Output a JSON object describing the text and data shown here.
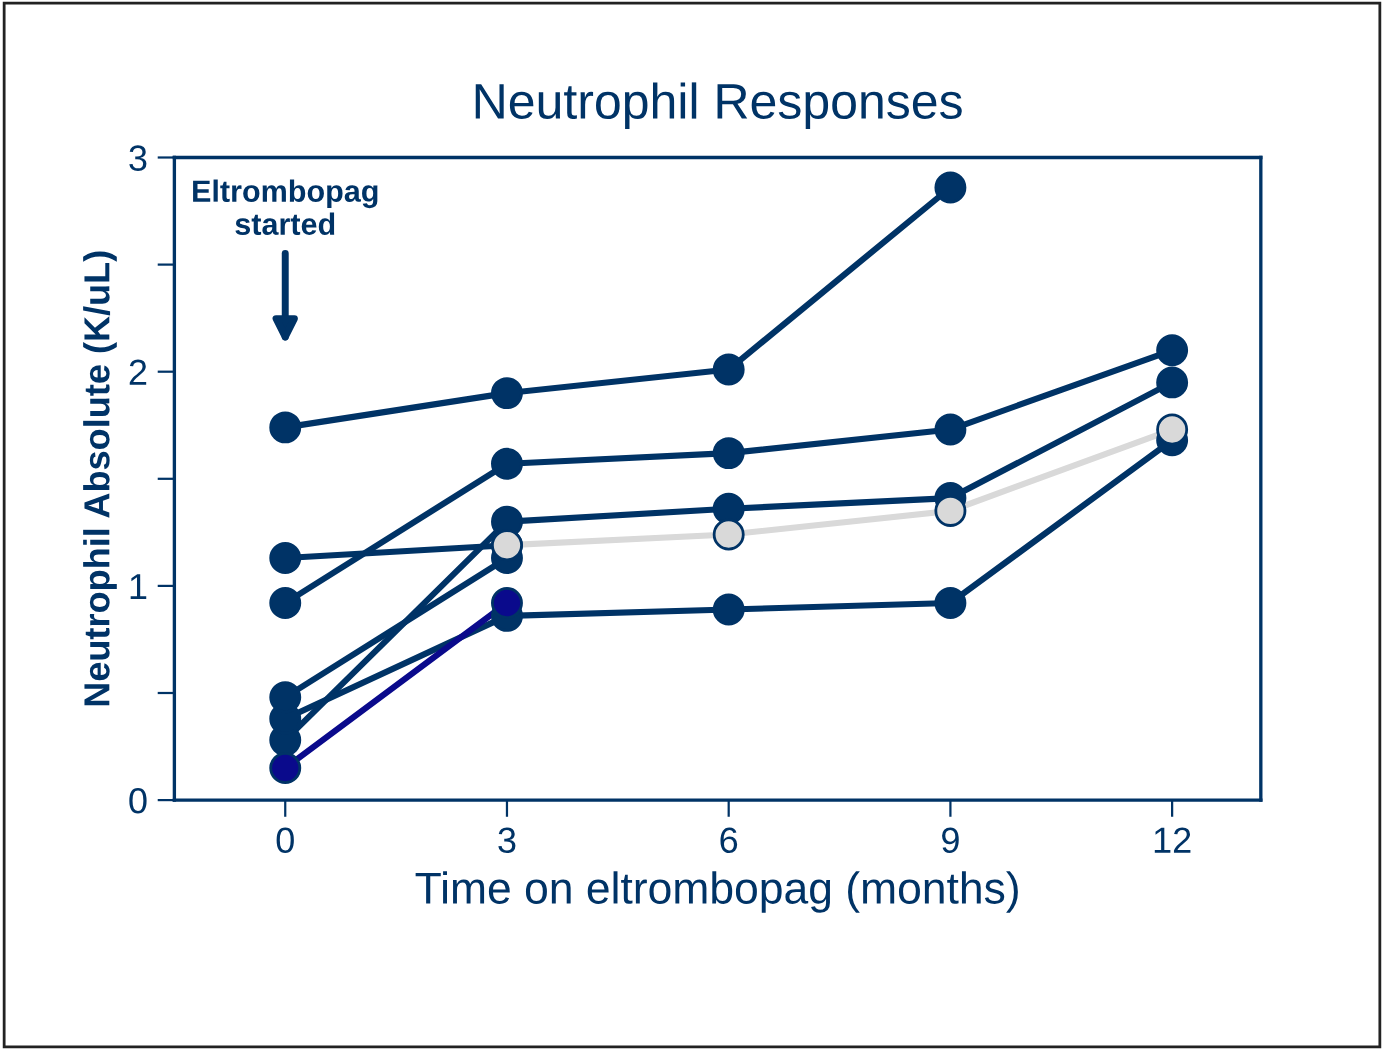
{
  "chart_data": {
    "type": "line",
    "title": "Neutrophil Responses",
    "xlabel": "Time on eltrombopag (months)",
    "ylabel": "Neutrophil Absolute (K/uL)",
    "x": [
      0,
      3,
      6,
      9,
      12
    ],
    "xlim": [
      -1.5,
      13.2
    ],
    "xticks": [
      0,
      3,
      6,
      9,
      12
    ],
    "ylim": [
      0,
      3
    ],
    "yticks": [
      0,
      {
        "value": 0.5,
        "label": null
      },
      1,
      {
        "value": 1.5,
        "label": null
      },
      2,
      {
        "value": 2.5,
        "label": null
      },
      3
    ],
    "grid": false,
    "legend": false,
    "marker": "circle",
    "line_style": "solid",
    "annotations": [
      "Eltrombopag\nstarted"
    ],
    "series": [
      {
        "color": "#003366",
        "values": [
          1.74,
          1.9,
          2.01,
          2.86,
          null
        ]
      },
      {
        "color": "#003366",
        "values": [
          0.92,
          1.57,
          1.62,
          1.73,
          2.1
        ]
      },
      {
        "color": "#003366",
        "values": [
          1.13,
          1.19,
          null,
          null,
          null
        ]
      },
      {
        "color": "#003366",
        "values": [
          0.28,
          1.3,
          1.36,
          1.41,
          1.95
        ]
      },
      {
        "color": "#003366",
        "values": [
          0.38,
          0.86,
          0.89,
          0.92,
          1.68
        ]
      },
      {
        "color": "#003366",
        "values": [
          0.48,
          1.13,
          null,
          null,
          null
        ]
      },
      {
        "color": "#0a0a8c",
        "values": [
          0.15,
          0.92,
          null,
          null,
          null
        ]
      },
      {
        "color": "#d9d9d9",
        "values": [
          null,
          1.19,
          1.24,
          1.35,
          1.73
        ]
      }
    ]
  }
}
